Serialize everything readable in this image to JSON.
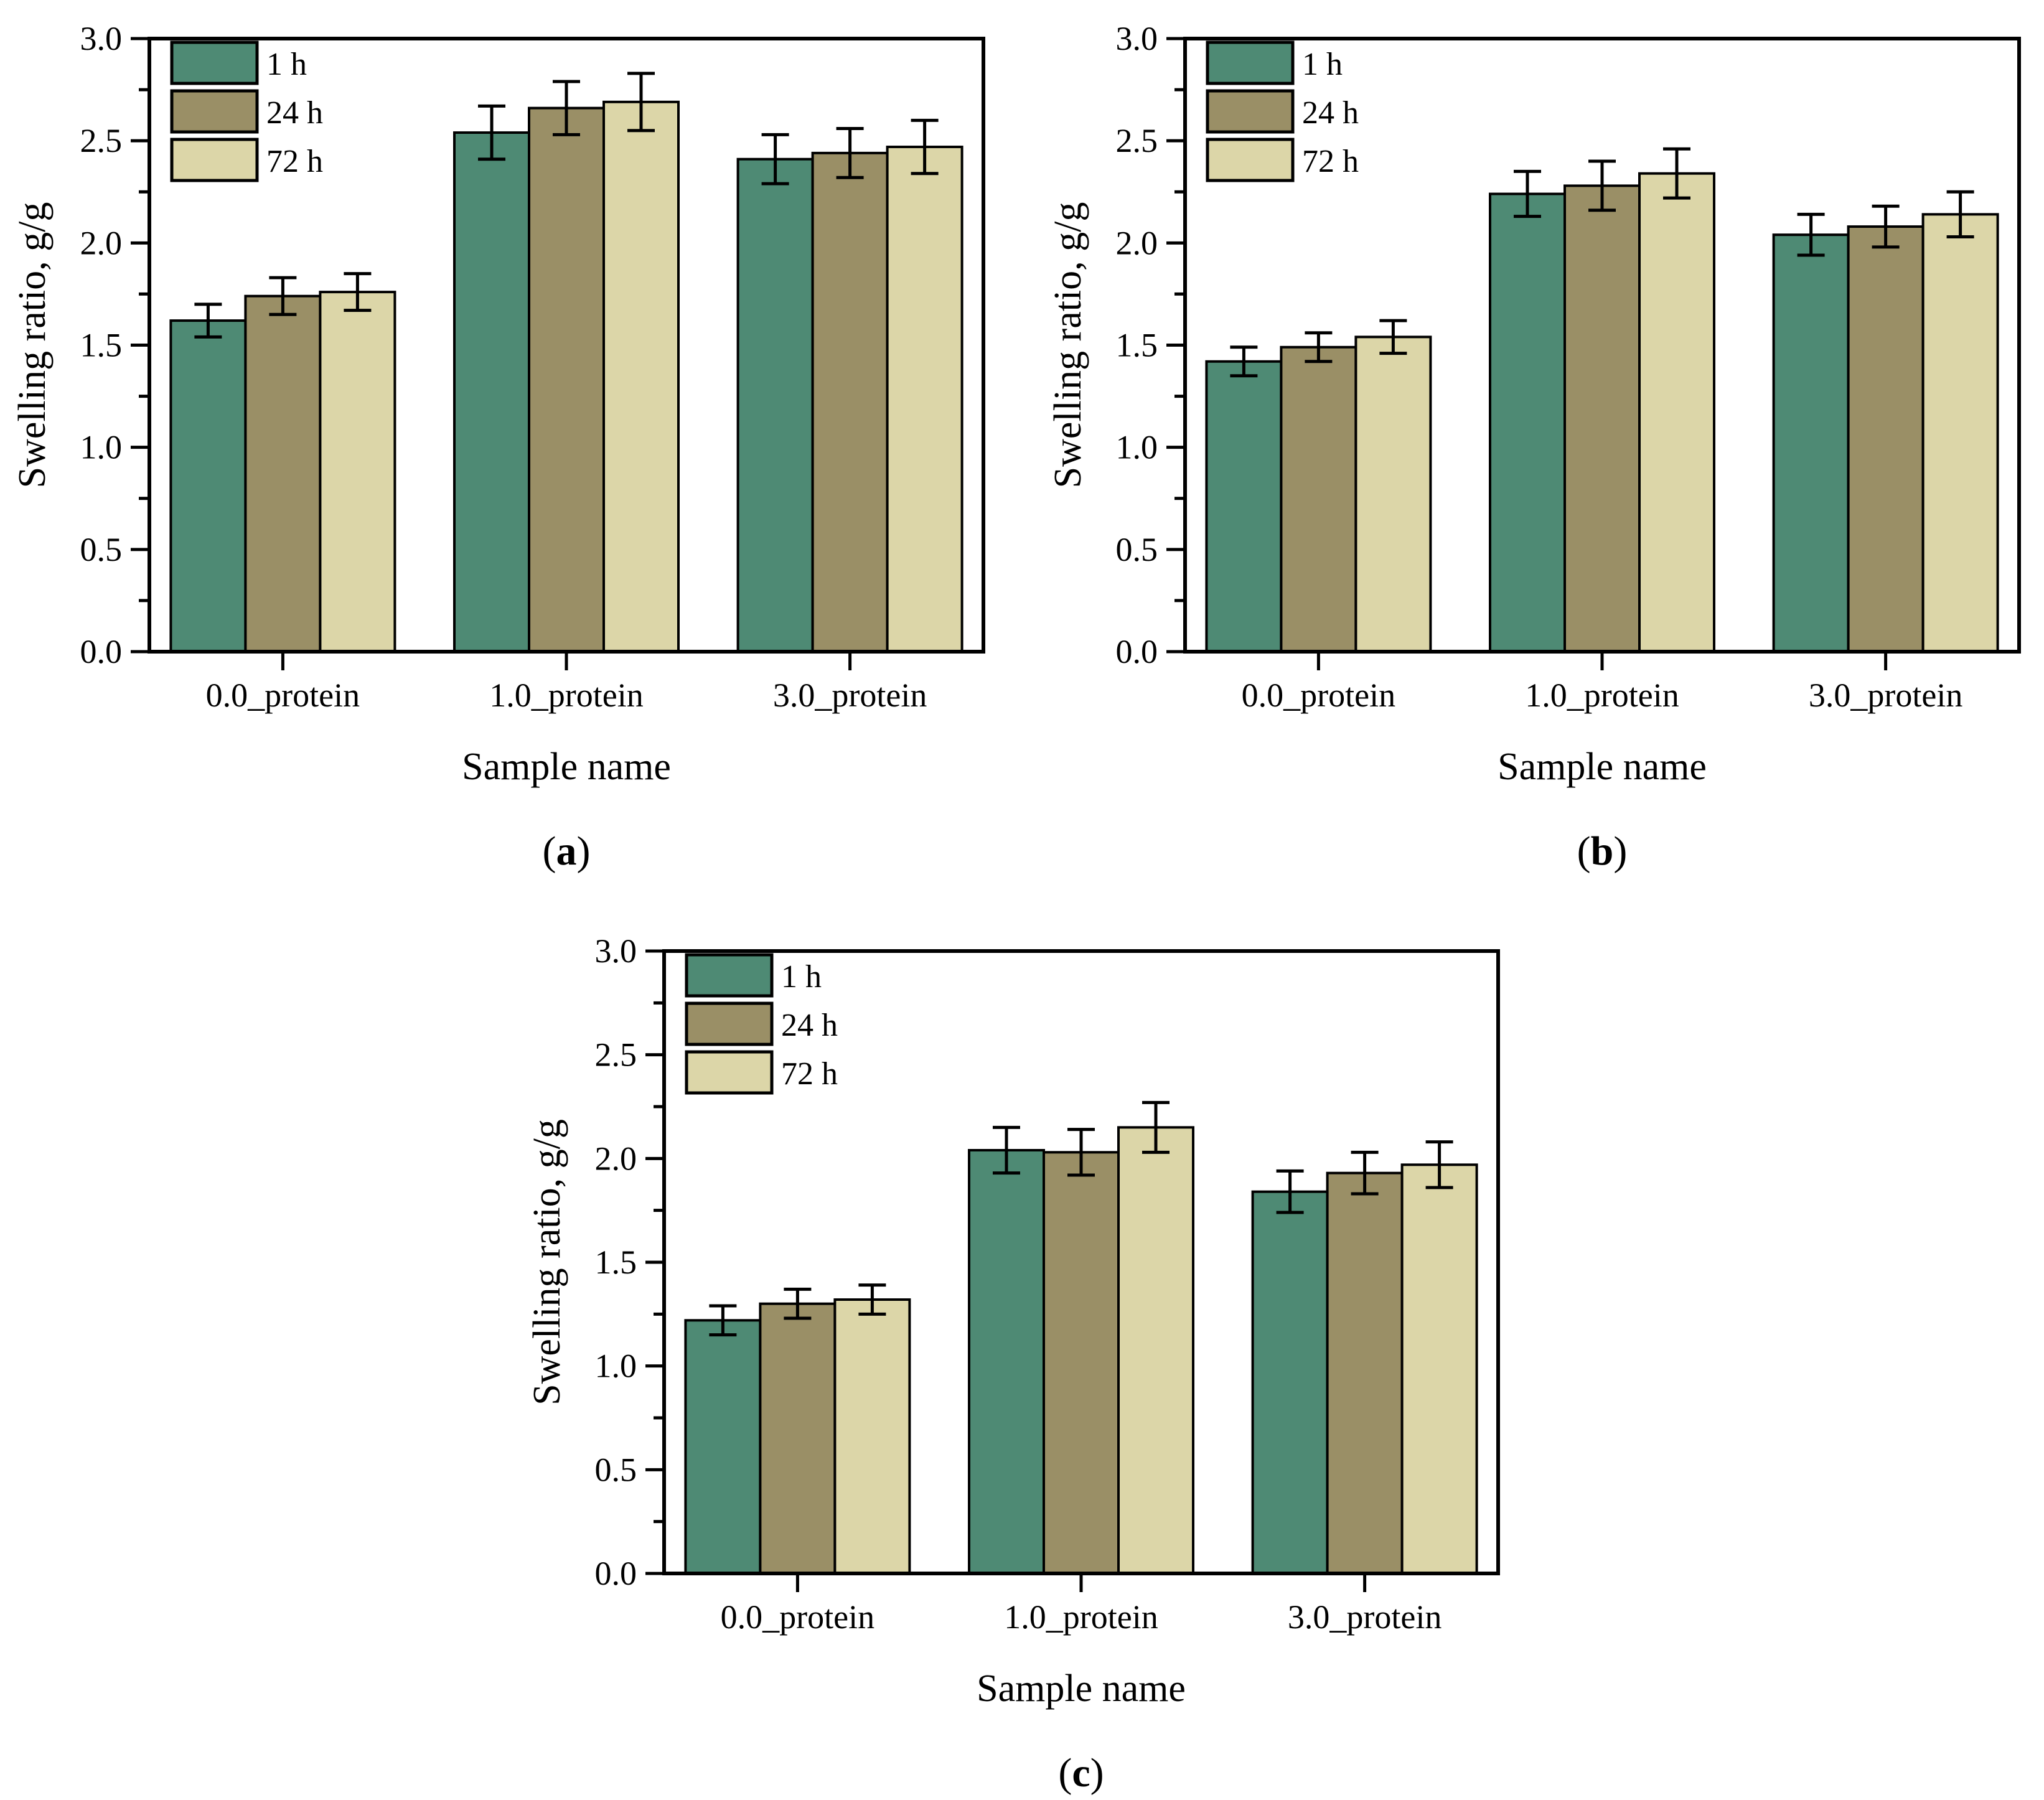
{
  "figure": {
    "ylabel": "Swelling ratio, g/g",
    "xlabel": "Sample name",
    "legend_labels": [
      "1 h",
      "24 h",
      "72 h"
    ],
    "categories": [
      "0.0_protein",
      "1.0_protein",
      "3.0_protein"
    ],
    "y_tick_labels": [
      "0.0",
      "0.5",
      "1.0",
      "1.5",
      "2.0",
      "2.5",
      "3.0"
    ],
    "colors": {
      "series_1h": "#4E8A74",
      "series_24h": "#9A8F66",
      "series_72h": "#DCD6A8",
      "axis": "#000000",
      "background": "#FFFFFF"
    },
    "panel_letters": [
      "a",
      "b",
      "c"
    ],
    "panel_wrap": [
      "(",
      ")"
    ]
  },
  "chart_data": [
    {
      "type": "bar",
      "panel": "a",
      "title": "",
      "xlabel": "Sample name",
      "ylabel": "Swelling ratio, g/g",
      "ylim": [
        0.0,
        3.0
      ],
      "y_major_step": 0.5,
      "y_minor_step": 0.25,
      "grid": false,
      "legend_position": "top-left",
      "categories": [
        "0.0_protein",
        "1.0_protein",
        "3.0_protein"
      ],
      "series": [
        {
          "name": "1 h",
          "values": [
            1.62,
            2.54,
            2.41
          ],
          "errors": [
            0.08,
            0.13,
            0.12
          ]
        },
        {
          "name": "24 h",
          "values": [
            1.74,
            2.66,
            2.44
          ],
          "errors": [
            0.09,
            0.13,
            0.12
          ]
        },
        {
          "name": "72 h",
          "values": [
            1.76,
            2.69,
            2.47
          ],
          "errors": [
            0.09,
            0.14,
            0.13
          ]
        }
      ]
    },
    {
      "type": "bar",
      "panel": "b",
      "title": "",
      "xlabel": "Sample name",
      "ylabel": "Swelling ratio, g/g",
      "ylim": [
        0.0,
        3.0
      ],
      "y_major_step": 0.5,
      "y_minor_step": 0.25,
      "grid": false,
      "legend_position": "top-left",
      "categories": [
        "0.0_protein",
        "1.0_protein",
        "3.0_protein"
      ],
      "series": [
        {
          "name": "1 h",
          "values": [
            1.42,
            2.24,
            2.04
          ],
          "errors": [
            0.07,
            0.11,
            0.1
          ]
        },
        {
          "name": "24 h",
          "values": [
            1.49,
            2.28,
            2.08
          ],
          "errors": [
            0.07,
            0.12,
            0.1
          ]
        },
        {
          "name": "72 h",
          "values": [
            1.54,
            2.34,
            2.14
          ],
          "errors": [
            0.08,
            0.12,
            0.11
          ]
        }
      ]
    },
    {
      "type": "bar",
      "panel": "c",
      "title": "",
      "xlabel": "Sample name",
      "ylabel": "Swelling ratio, g/g",
      "ylim": [
        0.0,
        3.0
      ],
      "y_major_step": 0.5,
      "y_minor_step": 0.25,
      "grid": false,
      "legend_position": "top-left",
      "categories": [
        "0.0_protein",
        "1.0_protein",
        "3.0_protein"
      ],
      "series": [
        {
          "name": "1 h",
          "values": [
            1.22,
            2.04,
            1.84
          ],
          "errors": [
            0.07,
            0.11,
            0.1
          ]
        },
        {
          "name": "24 h",
          "values": [
            1.3,
            2.03,
            1.93
          ],
          "errors": [
            0.07,
            0.11,
            0.1
          ]
        },
        {
          "name": "72 h",
          "values": [
            1.32,
            2.15,
            1.97
          ],
          "errors": [
            0.07,
            0.12,
            0.11
          ]
        }
      ]
    }
  ]
}
